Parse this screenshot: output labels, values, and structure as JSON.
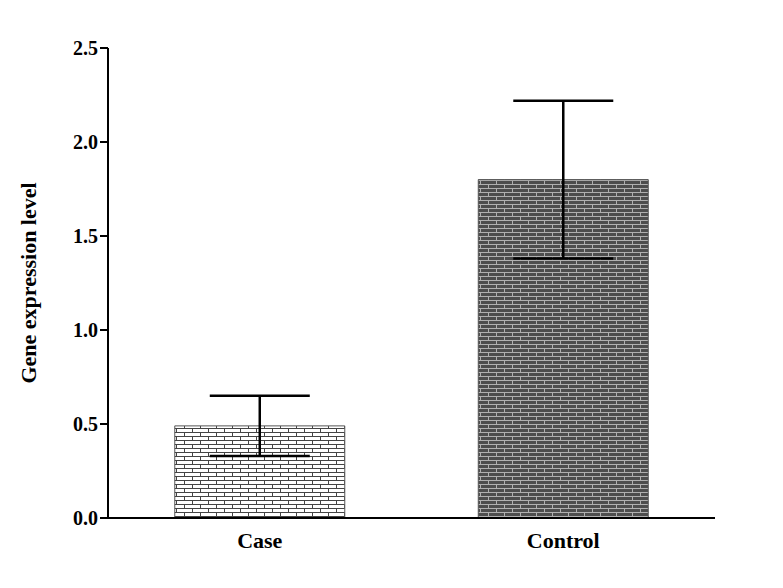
{
  "chart_data": {
    "type": "bar",
    "categories": [
      "Case",
      "Control"
    ],
    "values": [
      0.49,
      1.8
    ],
    "errors": [
      0.16,
      0.42
    ],
    "colors": [
      "#ffffff",
      "#4d4d4d"
    ],
    "ylabel": "Gene expression level",
    "ylim": [
      0,
      2.5
    ],
    "yticks": [
      {
        "value": 0,
        "label": "0.0"
      },
      {
        "value": 0.5,
        "label": "0.5"
      },
      {
        "value": 1,
        "label": "1.0"
      },
      {
        "value": 1.5,
        "label": "1.5"
      },
      {
        "value": 2,
        "label": "2.0"
      },
      {
        "value": 2.5,
        "label": "2.5"
      }
    ],
    "grid": false
  }
}
